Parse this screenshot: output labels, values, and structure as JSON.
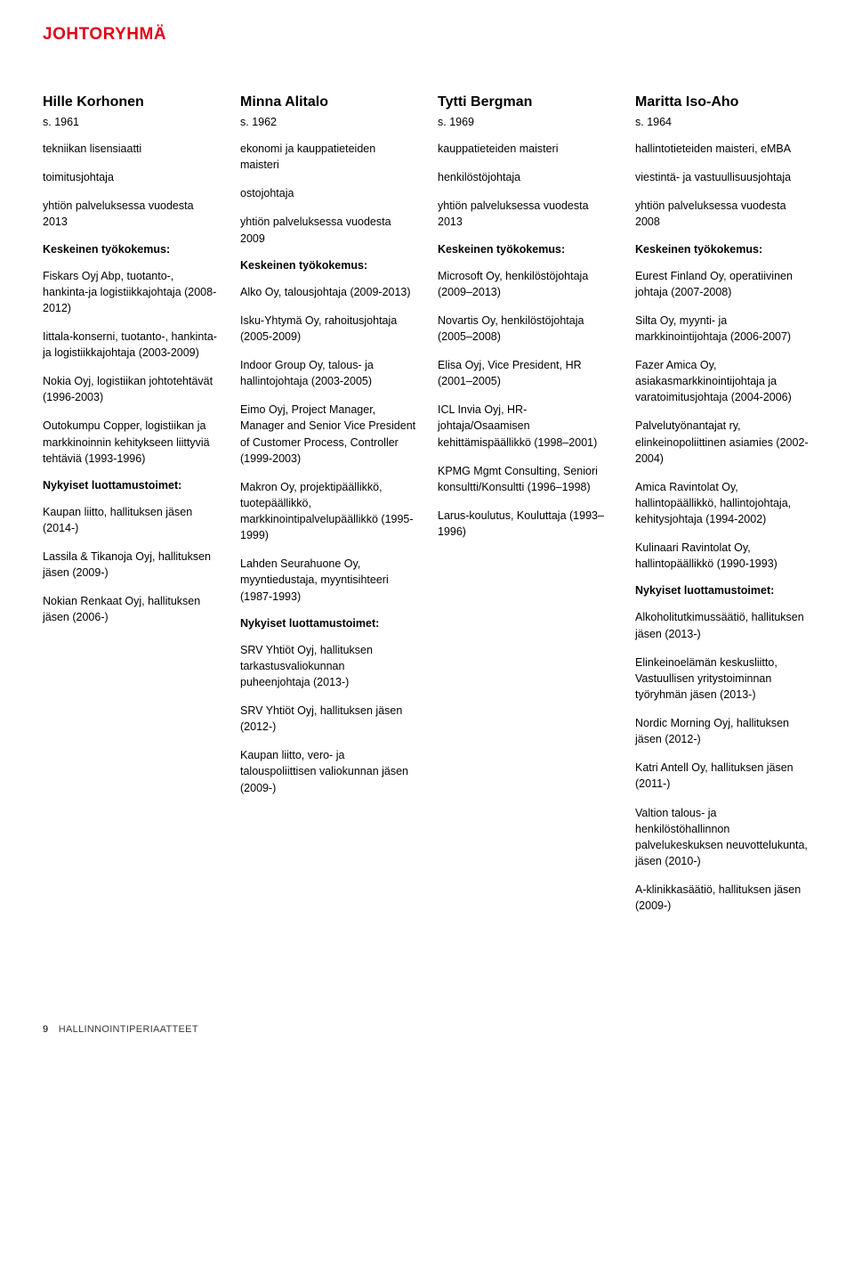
{
  "title": "JOHTORYHMÄ",
  "footer": {
    "page": "9",
    "label": "HALLINNOINTIPERIAATTEET"
  },
  "people": [
    {
      "name": "Hille Korhonen",
      "year": "s. 1961",
      "intro": [
        "tekniikan lisensiaatti",
        "toimitusjohtaja",
        "yhtiön palveluksessa vuodesta 2013"
      ],
      "section1Head": "Keskeinen työkokemus:",
      "section1": [
        "Fiskars Oyj Abp, tuotanto-, hankinta-ja logistiikkajohtaja (2008-2012)",
        "Iittala-konserni, tuotanto-, hankinta- ja logistiikkajohtaja (2003-2009)",
        "Nokia Oyj, logistiikan johtotehtävät (1996-2003)",
        "Outokumpu Copper, logistiikan ja markkinoinnin kehitykseen liittyviä tehtäviä (1993-1996)"
      ],
      "section2Head": "Nykyiset luottamustoimet:",
      "section2": [
        "Kaupan liitto, hallituksen jäsen (2014-)",
        "Lassila & Tikanoja Oyj, hallituksen jäsen (2009-)",
        "Nokian Renkaat Oyj, hallituksen jäsen (2006-)"
      ]
    },
    {
      "name": "Minna Alitalo",
      "year": "s. 1962",
      "intro": [
        "ekonomi ja kauppatieteiden maisteri",
        "ostojohtaja",
        "yhtiön palveluksessa vuodesta 2009"
      ],
      "section1Head": "Keskeinen työkokemus:",
      "section1": [
        "Alko Oy, talousjohtaja (2009-2013)",
        "Isku-Yhtymä Oy, rahoitusjohtaja (2005-2009)",
        "Indoor Group Oy, talous- ja hallintojohtaja (2003-2005)",
        "Eimo Oyj, Project Manager, Manager and Senior Vice President of Customer Process, Controller (1999-2003)",
        "Makron Oy, projektipäällikkö, tuotepäällikkö, markkinointipalvelupäällikkö (1995-1999)",
        "Lahden Seurahuone Oy, myyntiedustaja, myyntisihteeri (1987-1993)"
      ],
      "section2Head": "Nykyiset luottamustoimet:",
      "section2": [
        "SRV Yhtiöt Oyj, hallituksen tarkastusvaliokunnan puheenjohtaja (2013-)",
        "SRV Yhtiöt Oyj, hallituksen jäsen (2012-)",
        "Kaupan liitto, vero- ja talouspoliittisen valiokunnan jäsen (2009-)"
      ]
    },
    {
      "name": "Tytti Bergman",
      "year": "s. 1969",
      "intro": [
        "kauppatieteiden maisteri",
        "henkilöstöjohtaja",
        "yhtiön palveluksessa vuodesta 2013"
      ],
      "section1Head": "Keskeinen työkokemus:",
      "section1": [
        "Microsoft Oy, henkilöstöjohtaja (2009–2013)",
        "Novartis Oy, henkilöstöjohtaja (2005–2008)",
        "Elisa Oyj, Vice President, HR (2001–2005)",
        "ICL Invia Oyj, HR-johtaja/Osaamisen kehittämispäällikkö (1998–2001)",
        "KPMG Mgmt Consulting, Seniori konsultti/Konsultti (1996–1998)",
        "Larus-koulutus, Kouluttaja (1993–1996)"
      ],
      "section2Head": "",
      "section2": []
    },
    {
      "name": "Maritta Iso-Aho",
      "year": "s. 1964",
      "intro": [
        "hallintotieteiden maisteri, eMBA",
        "viestintä- ja vastuullisuusjohtaja",
        "yhtiön palveluksessa vuodesta 2008"
      ],
      "section1Head": "Keskeinen työkokemus:",
      "section1": [
        "Eurest Finland Oy, operatiivinen johtaja (2007-2008)",
        "Silta Oy, myynti- ja markkinointijohtaja (2006-2007)",
        "Fazer Amica Oy, asiakasmarkkinointijohtaja ja varatoimitusjohtaja (2004-2006)",
        "Palvelutyönantajat ry, elinkeinopoliittinen asiamies (2002-2004)",
        "Amica Ravintolat Oy, hallintopäällikkö, hallintojohtaja, kehitysjohtaja (1994-2002)",
        "Kulinaari Ravintolat Oy, hallintopäällikkö (1990-1993)"
      ],
      "section2Head": "Nykyiset luottamustoimet:",
      "section2": [
        "Alkoholitutkimussäätiö, hallituksen jäsen (2013-)",
        "Elinkeinoelämän keskusliitto, Vastuullisen yritystoiminnan työryhmän jäsen (2013-)",
        "Nordic Morning Oyj, hallituksen jäsen (2012-)",
        "Katri Antell Oy, hallituksen jäsen (2011-)",
        "Valtion talous- ja henkilöstöhallinnon palvelukeskuksen neuvottelukunta, jäsen (2010-)",
        "A-klinikkasäätiö, hallituksen jäsen (2009-)"
      ]
    }
  ]
}
